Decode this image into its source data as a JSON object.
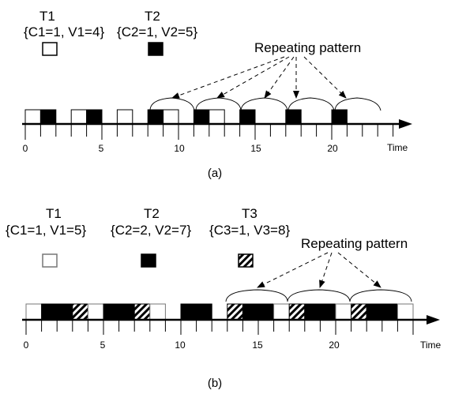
{
  "panel_a": {
    "tasks": [
      {
        "name": "T1",
        "c": "C1=1",
        "v": "V1=4",
        "fill": "white"
      },
      {
        "name": "T2",
        "c": "C2=1",
        "v": "V2=5",
        "fill": "black"
      }
    ],
    "pattern_label": "Repeating pattern",
    "time_label": "Time",
    "ticks": [
      "0",
      "5",
      "10",
      "15",
      "20"
    ],
    "caption": "(a)",
    "slots": [
      "white",
      "black",
      "",
      "white",
      "black",
      "",
      "white",
      "",
      "black",
      "white",
      "",
      "black",
      "white",
      "",
      "black",
      "",
      "",
      "black",
      "",
      "",
      "black"
    ]
  },
  "panel_b": {
    "tasks": [
      {
        "name": "T1",
        "c": "C1=1",
        "v": "V1=5",
        "fill": "white"
      },
      {
        "name": "T2",
        "c": "C2=2",
        "v": "V2=7",
        "fill": "black"
      },
      {
        "name": "T3",
        "c": "C3=1",
        "v": "V3=8",
        "fill": "hatch"
      }
    ],
    "pattern_label": "Repeating pattern",
    "time_label": "Time",
    "ticks": [
      "0",
      "5",
      "10",
      "15",
      "20"
    ],
    "caption": "(b)",
    "slots": [
      "white",
      "black",
      "black",
      "hatch",
      "white",
      "black",
      "black",
      "hatch",
      "white",
      "",
      "black",
      "black",
      "",
      "hatch",
      "black",
      "black",
      "white",
      "hatch",
      "black",
      "black",
      "white",
      "hatch",
      "black",
      "black",
      "white"
    ]
  },
  "colors": {
    "fill": "#000000",
    "stroke": "#000000",
    "background": "#ffffff"
  }
}
